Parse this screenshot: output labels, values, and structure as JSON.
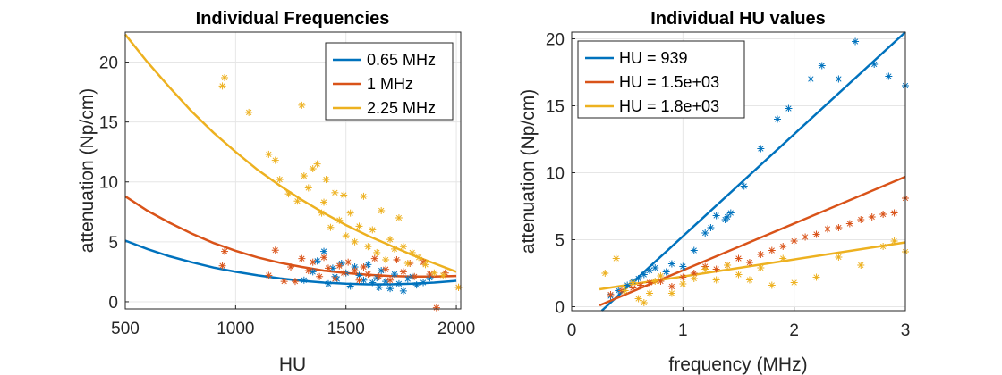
{
  "chart_data": [
    {
      "type": "scatter",
      "title": "Individual Frequencies",
      "xlabel": "HU",
      "ylabel": "attenuation (Np/cm)",
      "xlim": [
        500,
        2020
      ],
      "ylim": [
        -0.6,
        22.5
      ],
      "xticks": [
        500,
        1000,
        1500,
        2000
      ],
      "yticks": [
        0,
        5,
        10,
        15,
        20
      ],
      "grid": true,
      "legend_position": "top-right",
      "series": [
        {
          "name": "0.65 MHz",
          "color": "#0072BD",
          "fit_x": [
            500,
            600,
            700,
            800,
            900,
            1000,
            1100,
            1200,
            1300,
            1400,
            1500,
            1600,
            1700,
            1800,
            1900,
            2000
          ],
          "fit_y": [
            5.1,
            4.4,
            3.8,
            3.3,
            2.85,
            2.5,
            2.2,
            1.95,
            1.75,
            1.6,
            1.5,
            1.45,
            1.45,
            1.5,
            1.6,
            1.75
          ],
          "points_x": [
            1310,
            1350,
            1370,
            1400,
            1420,
            1440,
            1450,
            1460,
            1480,
            1500,
            1520,
            1540,
            1560,
            1580,
            1600,
            1620,
            1640,
            1650,
            1660,
            1680,
            1700,
            1720,
            1740,
            1760,
            1780,
            1800,
            1820,
            1850,
            1880
          ],
          "points_y": [
            1.8,
            2.5,
            3.4,
            4.2,
            1.5,
            2.8,
            2.1,
            1.9,
            3.2,
            2.4,
            1.3,
            2.9,
            2.2,
            1.8,
            3.1,
            1.6,
            2.0,
            1.2,
            2.6,
            1.7,
            1.1,
            2.3,
            1.5,
            0.9,
            1.9,
            2.1,
            1.4,
            1.6,
            2.0
          ]
        },
        {
          "name": "1 MHz",
          "color": "#D95319",
          "fit_x": [
            500,
            600,
            700,
            800,
            900,
            1000,
            1100,
            1200,
            1300,
            1400,
            1500,
            1600,
            1700,
            1800,
            1900,
            2000
          ],
          "fit_y": [
            8.8,
            7.6,
            6.6,
            5.7,
            4.9,
            4.25,
            3.7,
            3.25,
            2.9,
            2.6,
            2.4,
            2.25,
            2.15,
            2.1,
            2.1,
            2.15
          ],
          "points_x": [
            940,
            950,
            1150,
            1180,
            1220,
            1250,
            1270,
            1300,
            1330,
            1350,
            1380,
            1400,
            1420,
            1450,
            1470,
            1490,
            1510,
            1540,
            1560,
            1580,
            1600,
            1630,
            1650,
            1680,
            1700,
            1730,
            1760,
            1790,
            1810,
            1850,
            1880,
            1910,
            1950,
            2010
          ],
          "points_y": [
            3.0,
            4.2,
            2.2,
            4.3,
            1.7,
            2.9,
            1.7,
            3.6,
            2.6,
            3.3,
            2.1,
            3.7,
            2.8,
            1.9,
            3.0,
            2.4,
            3.3,
            2.6,
            1.8,
            2.9,
            2.3,
            3.6,
            2.1,
            2.7,
            1.8,
            3.5,
            2.5,
            3.2,
            2.1,
            3.3,
            2.3,
            -0.5,
            2.4,
            1.2
          ]
        },
        {
          "name": "2.25 MHz",
          "color": "#EDB120",
          "fit_x": [
            500,
            600,
            700,
            800,
            900,
            1000,
            1100,
            1200,
            1300,
            1400,
            1500,
            1600,
            1700,
            1800,
            1900,
            2000
          ],
          "fit_y": [
            22.3,
            20.0,
            17.9,
            15.9,
            14.1,
            12.5,
            11.0,
            9.7,
            8.5,
            7.4,
            6.4,
            5.5,
            4.7,
            3.9,
            3.2,
            2.5
          ],
          "points_x": [
            940,
            950,
            1060,
            1150,
            1180,
            1200,
            1240,
            1280,
            1300,
            1310,
            1330,
            1350,
            1370,
            1390,
            1400,
            1410,
            1430,
            1450,
            1470,
            1490,
            1500,
            1520,
            1540,
            1560,
            1580,
            1600,
            1620,
            1640,
            1660,
            1680,
            1700,
            1720,
            1740,
            1760,
            1780,
            1800,
            1830,
            1860,
            1900,
            1940,
            2010
          ],
          "points_y": [
            18.0,
            18.7,
            15.8,
            12.3,
            11.8,
            10.2,
            9.0,
            8.4,
            16.4,
            10.5,
            9.5,
            11.1,
            11.5,
            7.4,
            8.3,
            10.2,
            6.2,
            9.1,
            6.8,
            8.9,
            5.5,
            7.4,
            5.0,
            6.3,
            8.8,
            4.6,
            6.0,
            4.1,
            7.6,
            3.5,
            5.2,
            4.4,
            7.0,
            4.6,
            3.2,
            4.1,
            3.7,
            3.1,
            2.4,
            2.2,
            1.2
          ]
        }
      ]
    },
    {
      "type": "scatter",
      "title": "Individual HU values",
      "xlabel": "frequency (MHz)",
      "ylabel": "attenuation (Np/cm)",
      "xlim": [
        0,
        3
      ],
      "ylim": [
        -0.3,
        20.5
      ],
      "xticks": [
        0,
        1,
        2,
        3
      ],
      "yticks": [
        0,
        5,
        10,
        15,
        20
      ],
      "grid": true,
      "legend_position": "top-left",
      "series": [
        {
          "name": "HU = 939",
          "color": "#0072BD",
          "fit_x": [
            0.27,
            3.0
          ],
          "fit_y": [
            -0.3,
            20.5
          ],
          "points_x": [
            0.35,
            0.42,
            0.5,
            0.55,
            0.6,
            0.65,
            0.7,
            0.75,
            0.85,
            0.9,
            1.0,
            1.1,
            1.2,
            1.25,
            1.3,
            1.38,
            1.4,
            1.43,
            1.55,
            1.7,
            1.85,
            1.95,
            2.15,
            2.25,
            2.4,
            2.55,
            2.72,
            2.85,
            3.0
          ],
          "points_y": [
            0.8,
            1.2,
            1.6,
            1.9,
            2.1,
            2.4,
            2.7,
            2.9,
            2.6,
            3.2,
            3.0,
            4.2,
            5.5,
            5.9,
            6.8,
            6.5,
            6.7,
            7.0,
            9.0,
            11.8,
            14.0,
            14.8,
            17.0,
            18.0,
            17.0,
            19.8,
            18.1,
            17.2,
            16.5
          ]
        },
        {
          "name": "HU = 1.5e+03",
          "color": "#D95319",
          "fit_x": [
            0.25,
            3.0
          ],
          "fit_y": [
            0.1,
            9.7
          ],
          "points_x": [
            0.35,
            0.45,
            0.55,
            0.62,
            0.7,
            0.8,
            0.9,
            1.0,
            1.1,
            1.2,
            1.3,
            1.4,
            1.5,
            1.6,
            1.7,
            1.8,
            1.9,
            2.0,
            2.1,
            2.2,
            2.3,
            2.4,
            2.5,
            2.6,
            2.7,
            2.8,
            2.9,
            3.0
          ],
          "points_y": [
            0.9,
            1.2,
            1.4,
            1.6,
            1.8,
            1.9,
            1.5,
            2.2,
            2.5,
            3.0,
            2.8,
            3.1,
            3.6,
            3.3,
            3.9,
            4.2,
            4.5,
            4.9,
            5.2,
            5.4,
            5.8,
            5.9,
            6.2,
            6.5,
            6.7,
            6.9,
            7.0,
            8.1
          ]
        },
        {
          "name": "HU = 1.8e+03",
          "color": "#EDB120",
          "fit_x": [
            0.25,
            3.0
          ],
          "fit_y": [
            1.3,
            4.8
          ],
          "points_x": [
            0.3,
            0.4,
            0.48,
            0.55,
            0.6,
            0.65,
            0.7,
            0.75,
            0.8,
            0.9,
            1.0,
            1.1,
            1.2,
            1.3,
            1.4,
            1.5,
            1.6,
            1.7,
            1.8,
            1.9,
            2.0,
            2.2,
            2.4,
            2.6,
            2.8,
            2.9,
            3.0
          ],
          "points_y": [
            2.5,
            3.6,
            1.2,
            1.8,
            0.6,
            0.3,
            1.0,
            1.9,
            2.3,
            1.0,
            1.7,
            2.1,
            2.8,
            2.0,
            3.1,
            2.4,
            2.0,
            2.9,
            1.6,
            3.6,
            1.8,
            2.2,
            3.7,
            3.1,
            4.5,
            4.9,
            4.1
          ]
        }
      ]
    }
  ]
}
